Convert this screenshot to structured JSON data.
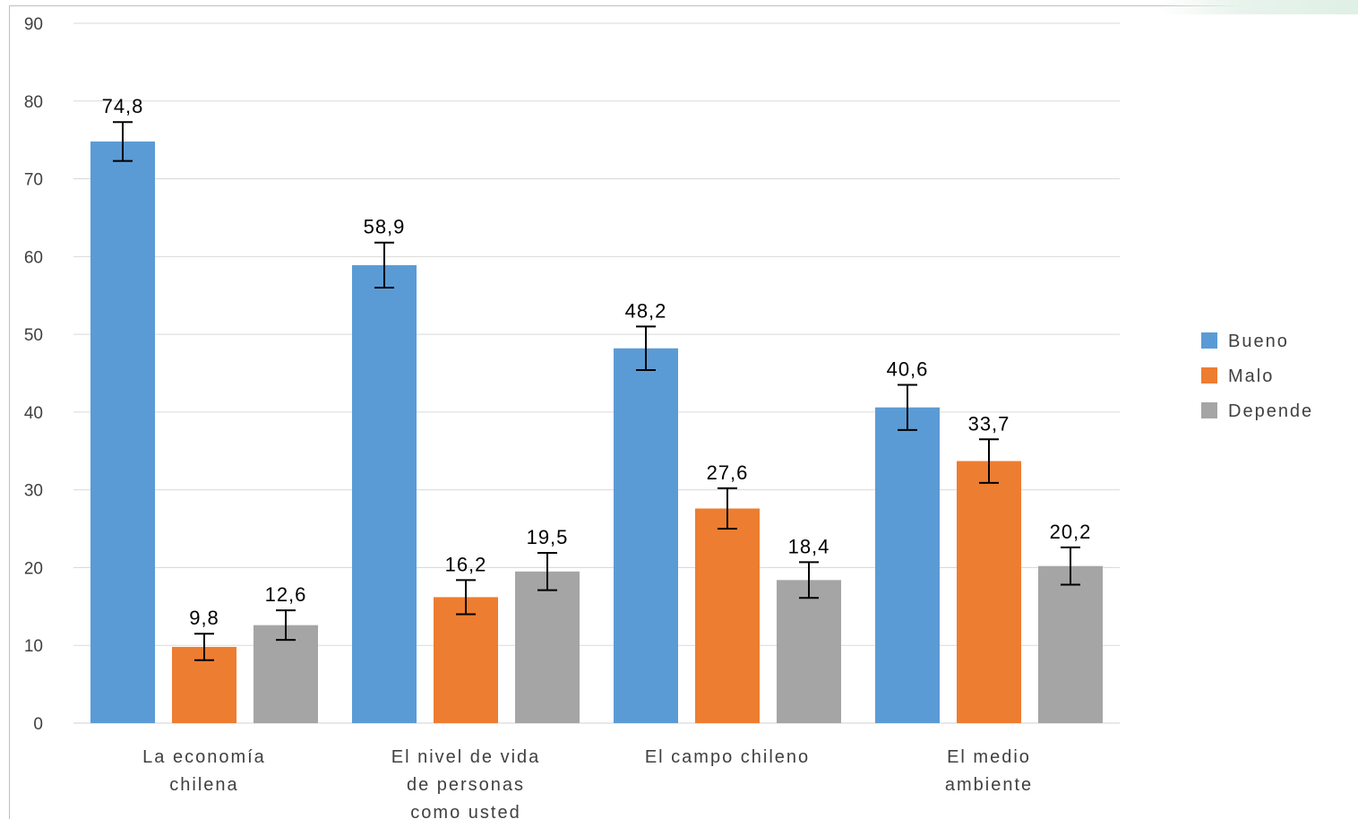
{
  "chart_data": {
    "type": "bar",
    "title": "",
    "xlabel": "",
    "ylabel": "",
    "ylim": [
      0,
      90
    ],
    "yticks": [
      0,
      10,
      20,
      30,
      40,
      50,
      60,
      70,
      80,
      90
    ],
    "grid": true,
    "legend_position": "right",
    "categories": [
      {
        "lines": [
          "La economía",
          "chilena"
        ]
      },
      {
        "lines": [
          "El nivel de vida",
          "de personas",
          "como usted"
        ]
      },
      {
        "lines": [
          "El campo chileno"
        ]
      },
      {
        "lines": [
          "El medio",
          "ambiente"
        ]
      }
    ],
    "series": [
      {
        "name": "Bueno",
        "color": "#5b9bd5",
        "values": [
          74.8,
          58.9,
          48.2,
          40.6
        ],
        "labels": [
          "74,8",
          "58,9",
          "48,2",
          "40,6"
        ],
        "error": [
          2.5,
          2.9,
          2.8,
          2.9
        ]
      },
      {
        "name": "Malo",
        "color": "#ed7d31",
        "values": [
          9.8,
          16.2,
          27.6,
          33.7
        ],
        "labels": [
          "9,8",
          "16,2",
          "27,6",
          "33,7"
        ],
        "error": [
          1.7,
          2.2,
          2.6,
          2.8
        ]
      },
      {
        "name": "Depende",
        "color": "#a5a5a5",
        "values": [
          12.6,
          19.5,
          18.4,
          20.2
        ],
        "labels": [
          "12,6",
          "19,5",
          "18,4",
          "20,2"
        ],
        "error": [
          1.9,
          2.4,
          2.3,
          2.4
        ]
      }
    ]
  }
}
